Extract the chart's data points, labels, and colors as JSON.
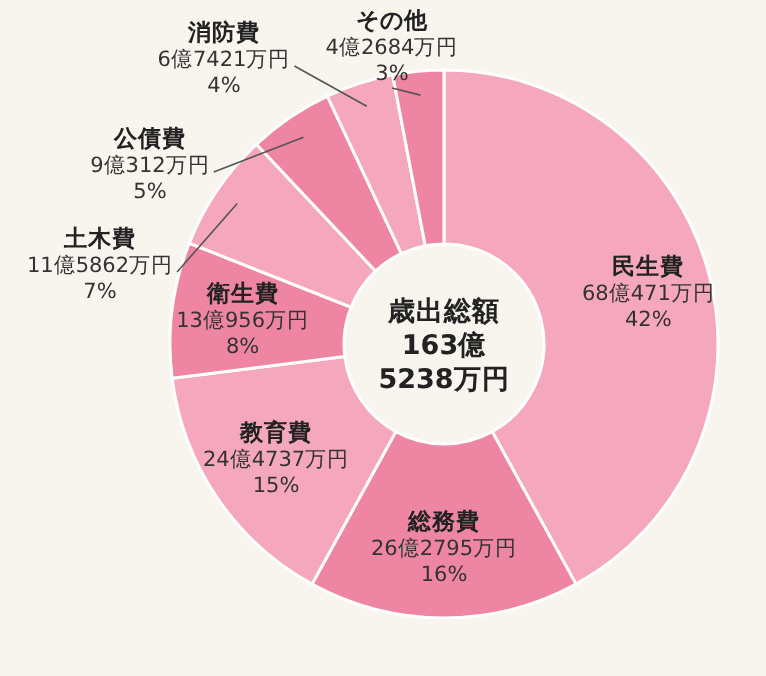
{
  "chart_data": {
    "type": "donut",
    "categories": [
      "民生費",
      "総務費",
      "教育費",
      "衛生費",
      "土木費",
      "公債費",
      "消防費",
      "その他"
    ],
    "values": [
      42,
      16,
      15,
      8,
      7,
      5,
      4,
      3
    ],
    "colors": [
      "#f5a8bd",
      "#ee86a3",
      "#f5a8bd",
      "#ee86a3",
      "#f5a8bd",
      "#ee86a3",
      "#f5a8bd",
      "#ee86a3"
    ],
    "value_labels": [
      "68億471万円\n42%",
      "26億2795万円\n16%",
      "24億4737万円\n15%",
      "13億956万円\n8%",
      "11億5862万円\n7%",
      "9億312万円\n5%",
      "6億7421万円\n4%",
      "4億2684万円\n3%"
    ],
    "annotations": [
      "歳出総額\n163億\n5238万円"
    ]
  }
}
